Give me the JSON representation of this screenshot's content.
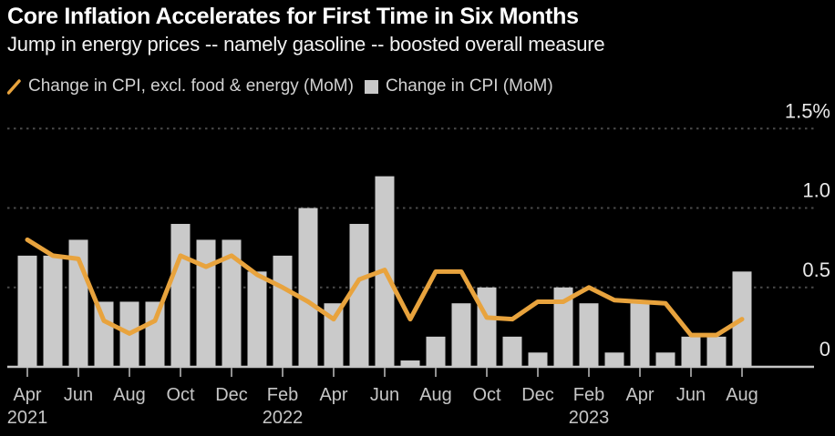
{
  "header": {
    "title": "Core Inflation Accelerates for First Time in Six Months",
    "subtitle": "Jump in energy prices -- namely gasoline -- boosted overall measure"
  },
  "legend": {
    "line_label": "Change in CPI, excl. food & energy (MoM)",
    "bar_label": "Change in CPI (MoM)"
  },
  "colors": {
    "background": "#000000",
    "line": "#e8a33d",
    "bar": "#cacaca",
    "axis": "#c6c6c6",
    "tick": "#909090",
    "gridline": "#4a4a4a",
    "x_label": "#c6c6c6",
    "y_label": "#e8e8e8"
  },
  "chart_data": {
    "type": "combo",
    "categories": [
      "Apr 2021",
      "May 2021",
      "Jun 2021",
      "Jul 2021",
      "Aug 2021",
      "Sep 2021",
      "Oct 2021",
      "Nov 2021",
      "Dec 2021",
      "Jan 2022",
      "Feb 2022",
      "Mar 2022",
      "Apr 2022",
      "May 2022",
      "Jun 2022",
      "Jul 2022",
      "Aug 2022",
      "Sep 2022",
      "Oct 2022",
      "Nov 2022",
      "Dec 2022",
      "Jan 2023",
      "Feb 2023",
      "Mar 2023",
      "Apr 2023",
      "May 2023",
      "Jun 2023",
      "Jul 2023",
      "Aug 2023"
    ],
    "series": [
      {
        "name": "Change in CPI, excl. food & energy (MoM)",
        "type": "line",
        "color": "#e8a33d",
        "values": [
          0.8,
          0.7,
          0.68,
          0.29,
          0.21,
          0.29,
          0.7,
          0.63,
          0.7,
          0.58,
          0.5,
          0.41,
          0.3,
          0.55,
          0.61,
          0.3,
          0.6,
          0.6,
          0.31,
          0.3,
          0.41,
          0.41,
          0.5,
          0.42,
          0.41,
          0.4,
          0.2,
          0.2,
          0.3
        ]
      },
      {
        "name": "Change in CPI (MoM)",
        "type": "bar",
        "color": "#cacaca",
        "values": [
          0.7,
          0.7,
          0.8,
          0.41,
          0.41,
          0.41,
          0.9,
          0.8,
          0.8,
          0.6,
          0.7,
          1.0,
          0.4,
          0.9,
          1.2,
          0.04,
          0.19,
          0.4,
          0.5,
          0.19,
          0.09,
          0.5,
          0.4,
          0.09,
          0.4,
          0.09,
          0.19,
          0.19,
          0.6
        ]
      }
    ],
    "xticks": [
      {
        "i": 0,
        "m": "Apr",
        "y": "2021"
      },
      {
        "i": 2,
        "m": "Jun"
      },
      {
        "i": 4,
        "m": "Aug"
      },
      {
        "i": 6,
        "m": "Oct"
      },
      {
        "i": 8,
        "m": "Dec"
      },
      {
        "i": 10,
        "m": "Feb",
        "y": "2022"
      },
      {
        "i": 12,
        "m": "Apr"
      },
      {
        "i": 14,
        "m": "Jun"
      },
      {
        "i": 16,
        "m": "Aug"
      },
      {
        "i": 18,
        "m": "Oct"
      },
      {
        "i": 20,
        "m": "Dec"
      },
      {
        "i": 22,
        "m": "Feb",
        "y": "2023"
      },
      {
        "i": 24,
        "m": "Apr"
      },
      {
        "i": 26,
        "m": "Jun"
      },
      {
        "i": 28,
        "m": "Aug"
      }
    ],
    "yticks": [
      {
        "v": 0.0,
        "label": "0"
      },
      {
        "v": 0.5,
        "label": "0.5"
      },
      {
        "v": 1.0,
        "label": "1.0"
      },
      {
        "v": 1.5,
        "label": "1.5%"
      }
    ],
    "ylim": [
      0,
      1.5
    ],
    "grid": "dotted-horizontal",
    "legend_position": "top-left"
  }
}
